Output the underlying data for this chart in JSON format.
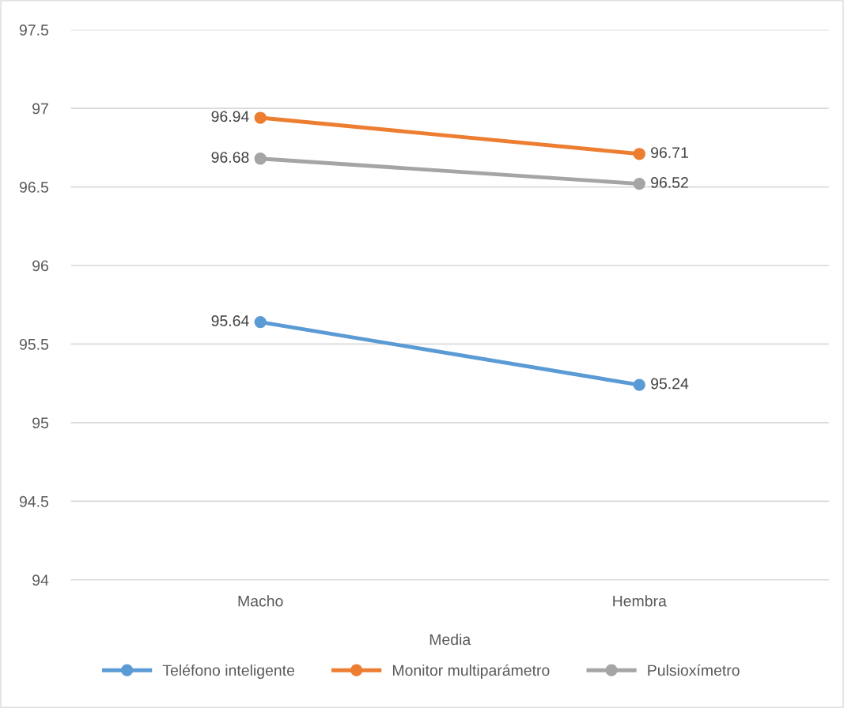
{
  "chart_data": {
    "type": "line",
    "xlabel": "Media",
    "categories": [
      "Macho",
      "Hembra"
    ],
    "series": [
      {
        "name": "Teléfono inteligente",
        "color": "#5b9bd5",
        "values": [
          95.64,
          95.24
        ]
      },
      {
        "name": "Monitor multiparámetro",
        "color": "#ed7d31",
        "values": [
          96.94,
          96.71
        ]
      },
      {
        "name": "Pulsioxímetro",
        "color": "#a5a5a5",
        "values": [
          96.68,
          96.52
        ]
      }
    ],
    "ylim": [
      94,
      97.5
    ],
    "yticks": [
      94,
      94.5,
      95,
      95.5,
      96,
      96.5,
      97,
      97.5
    ],
    "grid": "y",
    "legend": "bottom",
    "marker": "circle",
    "line_style": "solid",
    "data_labels": true
  }
}
